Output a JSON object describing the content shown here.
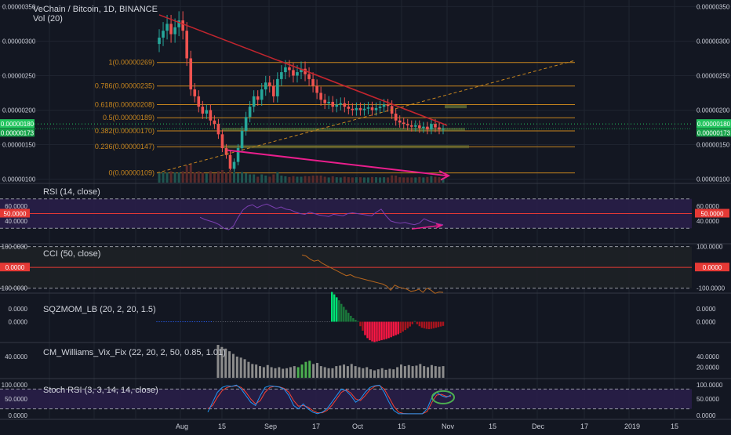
{
  "header": {
    "title": "VeChain / Bitcoin, 1D, BINANCE",
    "volume_label": "Vol (20)"
  },
  "colors": {
    "background": "#131722",
    "grid": "#1f2430",
    "up": "#26a69a",
    "down": "#ef5350",
    "fib": "#c8861e",
    "trendline": "#c0252e",
    "arrow": "#e91e8c",
    "rsi_band": "#2a1f4a",
    "rsi_line": "#7b3fb0",
    "cci_line": "#b5651d",
    "mom_pos": "#00e676",
    "mom_neg": "#ff1744",
    "vix_bar": "#8c8c8c",
    "vix_green": "#4caf50",
    "stoch_k": "#2196f3",
    "stoch_d": "#f44336",
    "ellipse": "#4caf50",
    "hline_red": "#e53935",
    "price_tag_green": "#22c55e"
  },
  "x_axis": {
    "labels": [
      "Aug",
      "15",
      "Sep",
      "17",
      "Oct",
      "15",
      "Nov",
      "15",
      "Dec",
      "17",
      "2019",
      "15"
    ]
  },
  "price_axis": {
    "labels": [
      "0.00000350",
      "0.00000300",
      "0.00000250",
      "0.00000200",
      "0.00000150",
      "0.00000100"
    ],
    "tag_high": "0.00000180",
    "tag_last": "0.00000173"
  },
  "fib_levels": [
    {
      "label": "1(0.00000269)",
      "value": 2.69e-06
    },
    {
      "label": "0.786(0.00000235)",
      "value": 2.35e-06
    },
    {
      "label": "0.618(0.00000208)",
      "value": 2.08e-06
    },
    {
      "label": "0.5(0.00000189)",
      "value": 1.89e-06
    },
    {
      "label": "0.382(0.00000170)",
      "value": 1.7e-06
    },
    {
      "label": "0.236(0.00000147)",
      "value": 1.47e-06
    },
    {
      "label": "0(0.00000109)",
      "value": 1.09e-06
    }
  ],
  "panels": {
    "rsi": {
      "label": "RSI (14, close)",
      "ticks": [
        "60.0000",
        "40.0000"
      ],
      "mid_tag": "50.0000"
    },
    "cci": {
      "label": "CCI (50, close)",
      "ticks": [
        "100.0000",
        "-100.0000"
      ],
      "zero_tag": "0.0000"
    },
    "mom": {
      "label": "SQZMOM_LB (20, 2, 20, 1.5)",
      "ticks": [
        "0.0000",
        "0.0000"
      ]
    },
    "vix": {
      "label": "CM_Williams_Vix_Fix (22, 20, 2, 50, 0.85, 1.01)",
      "ticks": [
        "40.0000",
        "20.0000"
      ]
    },
    "stoch": {
      "label": "Stoch RSI (3, 3, 14, 14, close)",
      "ticks": [
        "100.0000",
        "50.0000",
        "0.0000"
      ]
    }
  },
  "chart_data": {
    "type": "candlestick",
    "symbol": "VeChain / Bitcoin",
    "timeframe": "1D",
    "exchange": "BINANCE",
    "ylim": [
      9.5e-07,
      3.55e-06
    ],
    "candles_close": [
      3.05e-06,
      3.15e-06,
      3.25e-06,
      3.1e-06,
      3.2e-06,
      3.3e-06,
      3.15e-06,
      2.75e-06,
      2.3e-06,
      2.2e-06,
      2.05e-06,
      1.95e-06,
      2e-06,
      1.85e-06,
      1.8e-06,
      1.65e-06,
      1.45e-06,
      1.35e-06,
      1.15e-06,
      1.25e-06,
      1.45e-06,
      1.7e-06,
      1.9e-06,
      2.05e-06,
      2.2e-06,
      2.15e-06,
      2.3e-06,
      2.4e-06,
      2.35e-06,
      2.2e-06,
      2.45e-06,
      2.55e-06,
      2.62e-06,
      2.58e-06,
      2.5e-06,
      2.55e-06,
      2.6e-06,
      2.52e-06,
      2.45e-06,
      2.35e-06,
      2.25e-06,
      2.15e-06,
      2.1e-06,
      2.12e-06,
      2.05e-06,
      2.08e-06,
      2.1e-06,
      2.05e-06,
      2.02e-06,
      2e-06,
      2.03e-06,
      2e-06,
      2.02e-06,
      2.04e-06,
      2e-06,
      2.03e-06,
      2.05e-06,
      2.08e-06,
      2.06e-06,
      1.95e-06,
      1.85e-06,
      1.82e-06,
      1.8e-06,
      1.78e-06,
      1.76e-06,
      1.78e-06,
      1.74e-06,
      1.76e-06,
      1.72e-06,
      1.8e-06,
      1.75e-06,
      1.72e-06,
      1.73e-06
    ],
    "rsi": [
      45,
      42,
      40,
      38,
      35,
      30,
      28,
      33,
      45,
      55,
      60,
      62,
      58,
      61,
      63,
      60,
      57,
      59,
      56,
      55,
      52,
      50,
      49,
      52,
      50,
      48,
      47,
      46,
      49,
      48,
      47,
      50,
      51,
      50,
      49,
      48,
      47,
      52,
      56,
      47,
      40,
      38,
      37,
      38,
      36,
      35,
      37,
      43,
      40,
      38,
      36,
      35
    ],
    "cci": [
      60,
      55,
      40,
      30,
      35,
      20,
      10,
      0,
      -10,
      -20,
      -30,
      -40,
      -35,
      -45,
      -50,
      -55,
      -60,
      -65,
      -70,
      -75,
      -80,
      -90,
      -110,
      -85,
      -95,
      -100,
      -105,
      -115,
      -112,
      -105,
      -120,
      -100,
      -110,
      -125,
      -118,
      -120
    ],
    "momentum": [
      0,
      0,
      0,
      0,
      0,
      0,
      0,
      0,
      0,
      0,
      0,
      0,
      0,
      0,
      0,
      0,
      0,
      0,
      0,
      0,
      0,
      0,
      0,
      0,
      0,
      0,
      0,
      0,
      0,
      0,
      0,
      0,
      0,
      0,
      0,
      0,
      0,
      0,
      0,
      0,
      0,
      0,
      0,
      0,
      0,
      0,
      0,
      0,
      0,
      0,
      0,
      0,
      0,
      0,
      0,
      0,
      0,
      0,
      0,
      0,
      0,
      0,
      0,
      0,
      0,
      0,
      0,
      0,
      0,
      0,
      0,
      0,
      0,
      0,
      1.0,
      0.92,
      0.82,
      0.72,
      0.6,
      0.5,
      0.4,
      0.3,
      0.2,
      0.12,
      0.06,
      0.02,
      -0.15,
      -0.3,
      -0.45,
      -0.55,
      -0.62,
      -0.66,
      -0.68,
      -0.66,
      -0.64,
      -0.62,
      -0.6,
      -0.58,
      -0.55,
      -0.52,
      -0.48,
      -0.45,
      -0.42,
      -0.38,
      -0.33,
      -0.28,
      -0.22,
      -0.16,
      -0.08,
      0.02,
      -0.08,
      -0.15,
      -0.2,
      -0.22,
      -0.24,
      -0.25,
      -0.24,
      -0.22,
      -0.2,
      -0.18,
      -0.16,
      -0.14
    ],
    "vix": [
      62,
      58,
      55,
      50,
      45,
      40,
      38,
      35,
      30,
      26,
      25,
      22,
      20,
      24,
      20,
      18,
      20,
      17,
      18,
      20,
      22,
      20,
      25,
      30,
      32,
      26,
      28,
      22,
      20,
      18,
      18,
      22,
      23,
      25,
      22,
      26,
      22,
      20,
      18,
      20,
      16,
      14,
      16,
      18,
      15,
      17,
      16,
      20,
      25,
      22,
      24,
      22,
      23,
      26,
      22,
      20,
      24,
      22,
      21,
      22
    ],
    "stoch_k": [
      10,
      40,
      70,
      85,
      90,
      88,
      92,
      80,
      60,
      40,
      30,
      60,
      85,
      90,
      88,
      86,
      80,
      60,
      30,
      20,
      35,
      20,
      10,
      5,
      10,
      20,
      40,
      60,
      80,
      75,
      60,
      40,
      50,
      70,
      85,
      90,
      92,
      70,
      40,
      15,
      5,
      5,
      5,
      5,
      5,
      5,
      20,
      55,
      70,
      60,
      55,
      62
    ],
    "stoch_d": [
      20,
      30,
      55,
      75,
      85,
      88,
      90,
      85,
      70,
      50,
      35,
      45,
      70,
      85,
      88,
      87,
      82,
      70,
      45,
      28,
      30,
      25,
      15,
      8,
      8,
      15,
      30,
      50,
      70,
      78,
      68,
      50,
      45,
      60,
      78,
      88,
      91,
      80,
      55,
      28,
      10,
      6,
      5,
      5,
      5,
      5,
      12,
      40,
      62,
      64,
      58,
      58
    ]
  }
}
